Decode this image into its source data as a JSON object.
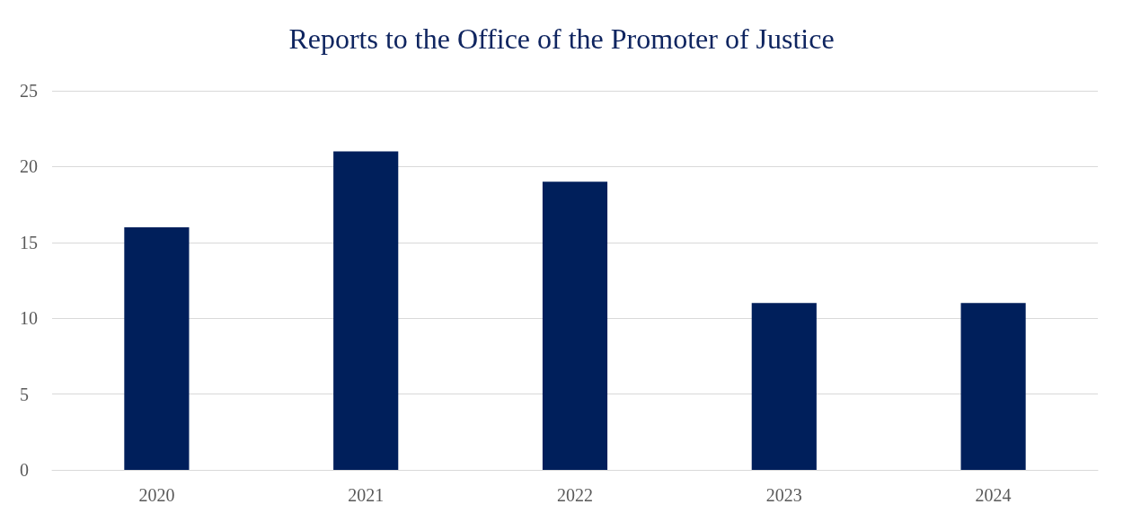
{
  "chart_data": {
    "type": "bar",
    "title": "Reports to the Office of the Promoter of Justice",
    "categories": [
      "2020",
      "2021",
      "2022",
      "2023",
      "2024"
    ],
    "values": [
      16,
      21,
      19,
      11,
      11
    ],
    "color": "#001f5b",
    "ylim": [
      0,
      25
    ],
    "yticks": [
      0,
      5,
      10,
      15,
      20,
      25
    ],
    "grid": "y"
  }
}
